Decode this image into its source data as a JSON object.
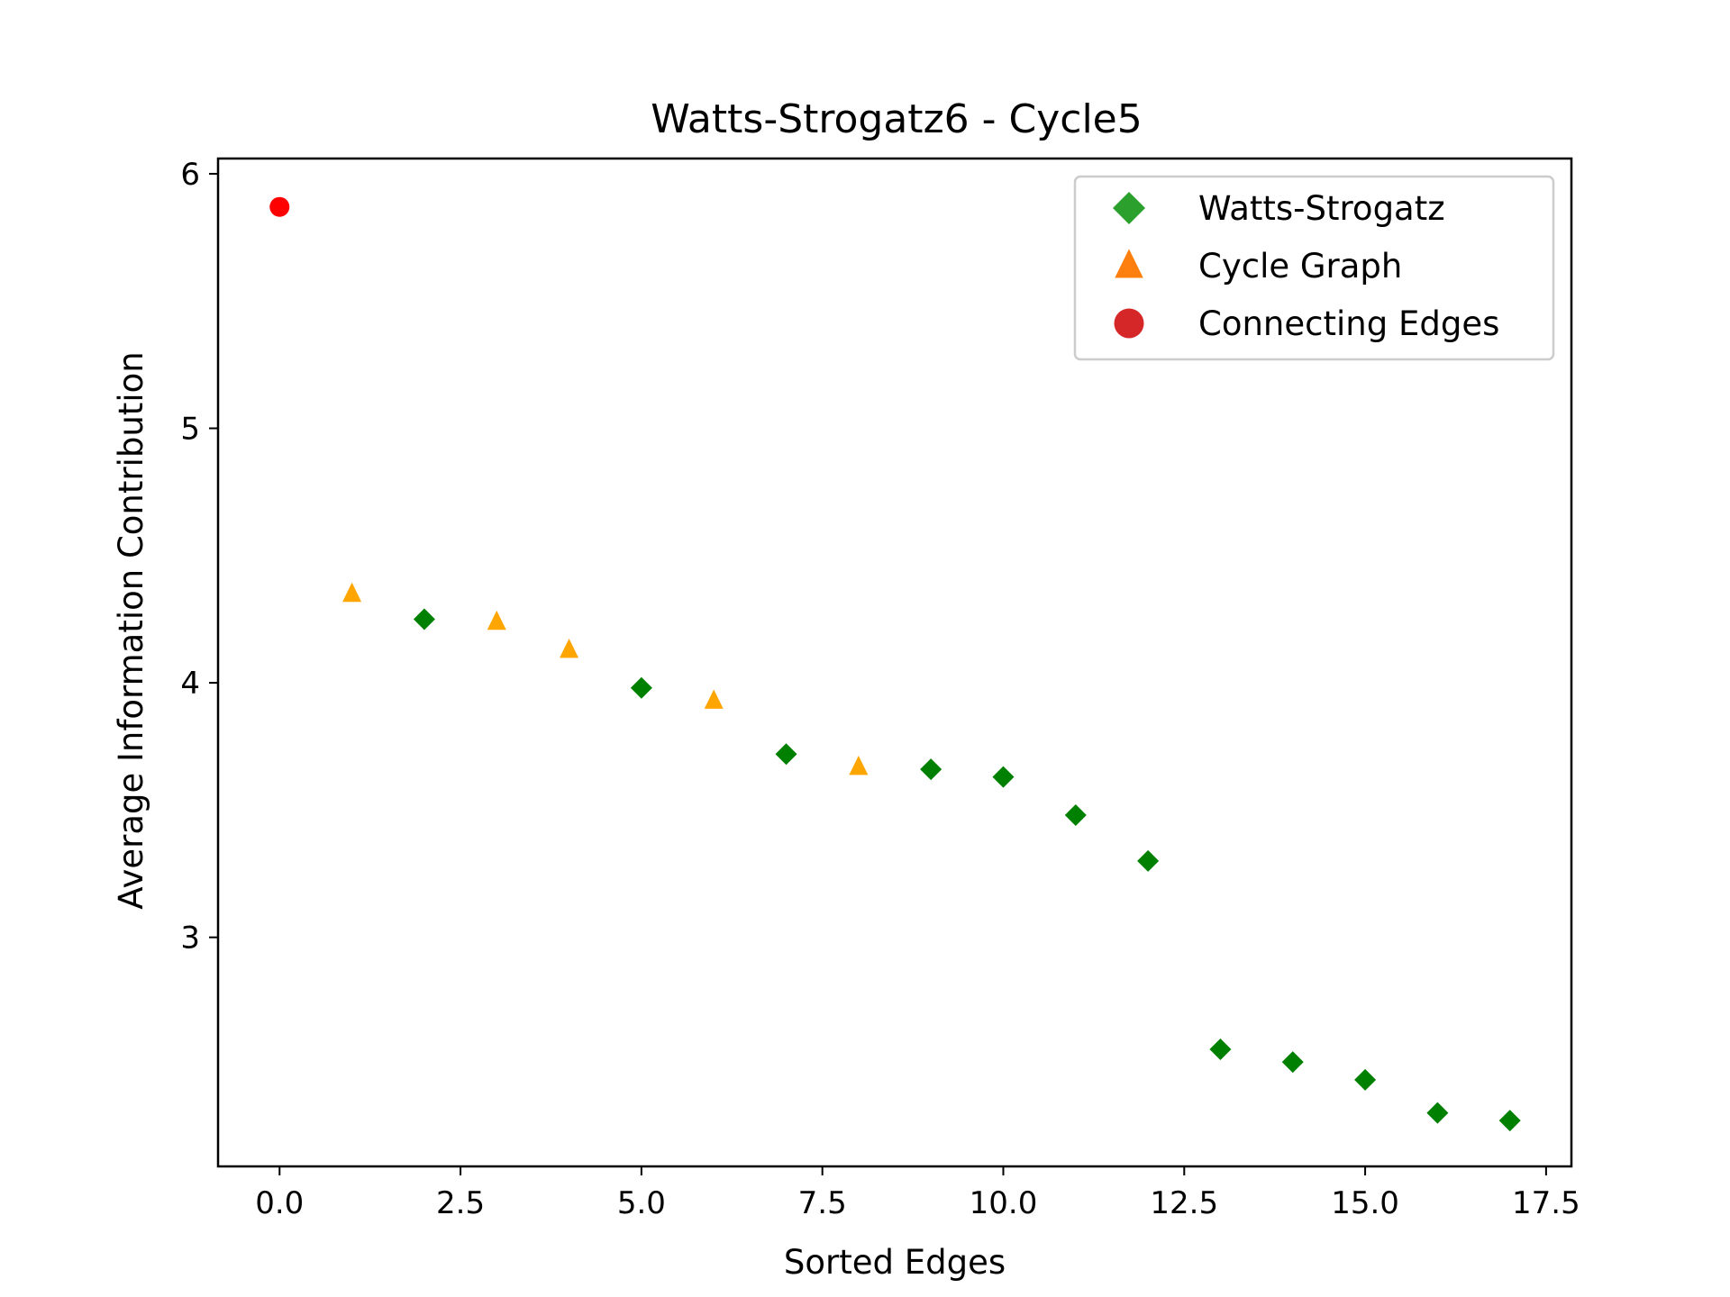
{
  "chart_data": {
    "type": "scatter",
    "title": "Watts-Strogatz6 - Cycle5",
    "xlabel": "Sorted Edges",
    "ylabel": "Average Information Contribution",
    "xlim": [
      -0.85,
      17.85
    ],
    "ylim": [
      2.1,
      6.06
    ],
    "x_ticks": [
      0.0,
      2.5,
      5.0,
      7.5,
      10.0,
      12.5,
      15.0,
      17.5
    ],
    "x_tick_labels": [
      "0.0",
      "2.5",
      "5.0",
      "7.5",
      "10.0",
      "12.5",
      "15.0",
      "17.5"
    ],
    "y_ticks": [
      3,
      4,
      5,
      6
    ],
    "y_tick_labels": [
      "3",
      "4",
      "5",
      "6"
    ],
    "grid": false,
    "legend_position": "top-right",
    "series": [
      {
        "name": "Watts-Strogatz",
        "marker": "diamond",
        "color": "#008000",
        "legend_color": "#2ca02c",
        "points": [
          {
            "x": 2,
            "y": 4.25
          },
          {
            "x": 5,
            "y": 3.98
          },
          {
            "x": 7,
            "y": 3.72
          },
          {
            "x": 9,
            "y": 3.66
          },
          {
            "x": 10,
            "y": 3.63
          },
          {
            "x": 11,
            "y": 3.48
          },
          {
            "x": 12,
            "y": 3.3
          },
          {
            "x": 13,
            "y": 2.56
          },
          {
            "x": 14,
            "y": 2.51
          },
          {
            "x": 15,
            "y": 2.44
          },
          {
            "x": 16,
            "y": 2.31
          },
          {
            "x": 17,
            "y": 2.28
          }
        ]
      },
      {
        "name": "Cycle Graph",
        "marker": "triangle",
        "color": "#ffa500",
        "legend_color": "#ff7f0e",
        "points": [
          {
            "x": 1,
            "y": 4.35
          },
          {
            "x": 3,
            "y": 4.24
          },
          {
            "x": 4,
            "y": 4.13
          },
          {
            "x": 6,
            "y": 3.93
          },
          {
            "x": 8,
            "y": 3.67
          }
        ]
      },
      {
        "name": "Connecting Edges",
        "marker": "circle",
        "color": "#ff0000",
        "legend_color": "#d62728",
        "points": [
          {
            "x": 0,
            "y": 5.87
          }
        ]
      }
    ]
  }
}
